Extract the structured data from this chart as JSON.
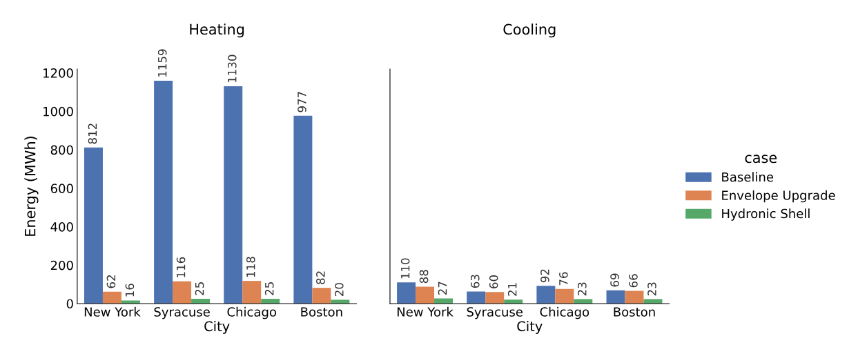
{
  "chart_data": [
    {
      "type": "bar",
      "title": "Heating",
      "xlabel": "City",
      "ylabel": "Energy (MWh)",
      "categories": [
        "New York",
        "Syracuse",
        "Chicago",
        "Boston"
      ],
      "series": [
        {
          "name": "Baseline",
          "color": "#4c72b0",
          "values": [
            812,
            1159,
            1130,
            977
          ]
        },
        {
          "name": "Envelope Upgrade",
          "color": "#dd8452",
          "values": [
            62,
            116,
            118,
            82
          ]
        },
        {
          "name": "Hydronic Shell",
          "color": "#55a868",
          "values": [
            16,
            25,
            25,
            20
          ]
        }
      ],
      "ylim": [
        0,
        1220
      ],
      "yticks": [
        0,
        200,
        400,
        600,
        800,
        1000,
        1200
      ],
      "data_labels": true,
      "grid": false,
      "legend": "right",
      "legend_title": "case"
    },
    {
      "type": "bar",
      "title": "Cooling",
      "xlabel": "City",
      "categories": [
        "New York",
        "Syracuse",
        "Chicago",
        "Boston"
      ],
      "series": [
        {
          "color": "#4c72b0",
          "values": [
            110,
            63,
            92,
            69
          ]
        },
        {
          "color": "#dd8452",
          "values": [
            88,
            60,
            76,
            66
          ]
        },
        {
          "color": "#55a868",
          "values": [
            27,
            21,
            23,
            23
          ]
        }
      ],
      "ylim": [
        0,
        1220
      ],
      "yticks": [
        0,
        200,
        400,
        600,
        800,
        1000,
        1200
      ],
      "tick_labels": "x",
      "data_labels": true,
      "grid": false
    }
  ]
}
